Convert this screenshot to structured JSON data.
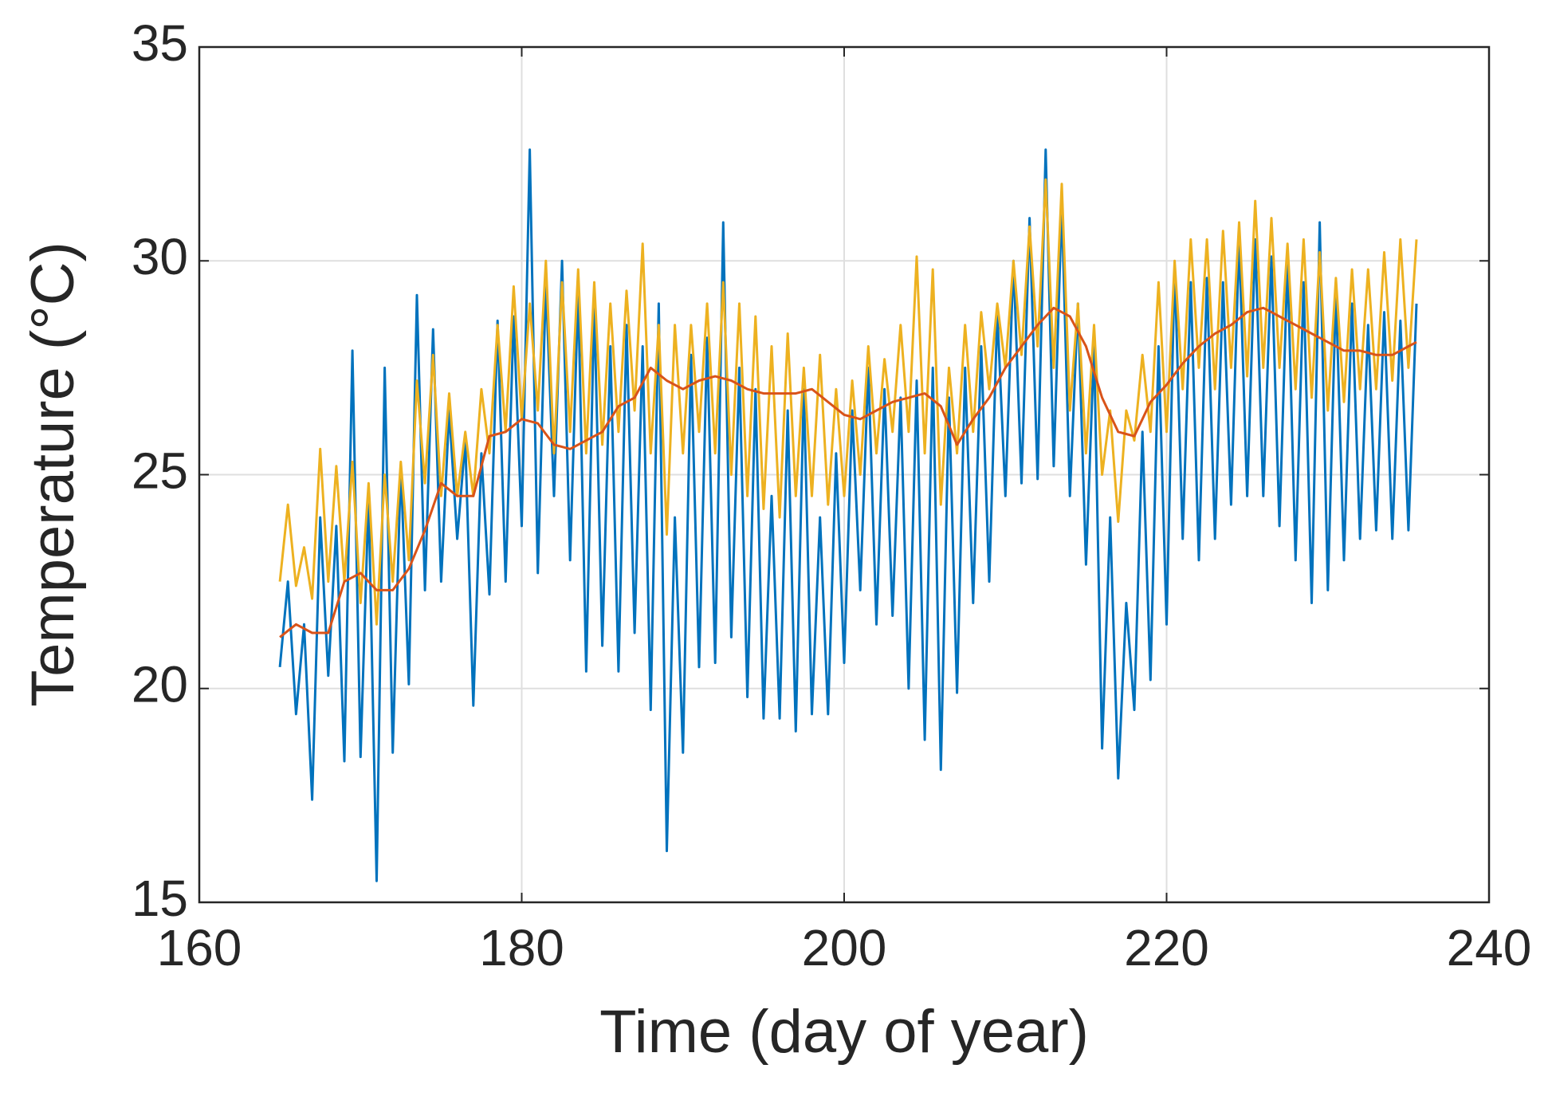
{
  "chart_data": {
    "type": "line",
    "xlabel": "Time (day of year)",
    "ylabel": "Temperature (°C)",
    "xlim": [
      160,
      240
    ],
    "xticks": [
      160,
      180,
      200,
      220,
      240
    ],
    "ylim": [
      15,
      35
    ],
    "yticks": [
      15,
      20,
      25,
      30,
      35
    ],
    "grid": true,
    "x": [
      165,
      165.5,
      166,
      166.5,
      167,
      167.5,
      168,
      168.5,
      169,
      169.5,
      170,
      170.5,
      171,
      171.5,
      172,
      172.5,
      173,
      173.5,
      174,
      174.5,
      175,
      175.5,
      176,
      176.5,
      177,
      177.5,
      178,
      178.5,
      179,
      179.5,
      180,
      180.5,
      181,
      181.5,
      182,
      182.5,
      183,
      183.5,
      184,
      184.5,
      185,
      185.5,
      186,
      186.5,
      187,
      187.5,
      188,
      188.5,
      189,
      189.5,
      190,
      190.5,
      191,
      191.5,
      192,
      192.5,
      193,
      193.5,
      194,
      194.5,
      195,
      195.5,
      196,
      196.5,
      197,
      197.5,
      198,
      198.5,
      199,
      199.5,
      200,
      200.5,
      201,
      201.5,
      202,
      202.5,
      203,
      203.5,
      204,
      204.5,
      205,
      205.5,
      206,
      206.5,
      207,
      207.5,
      208,
      208.5,
      209,
      209.5,
      210,
      210.5,
      211,
      211.5,
      212,
      212.5,
      213,
      213.5,
      214,
      214.5,
      215,
      215.5,
      216,
      216.5,
      217,
      217.5,
      218,
      218.5,
      219,
      219.5,
      220,
      220.5,
      221,
      221.5,
      222,
      222.5,
      223,
      223.5,
      224,
      224.5,
      225,
      225.5,
      226,
      226.5,
      227,
      227.5,
      228,
      228.5,
      229,
      229.5,
      230,
      230.5,
      231,
      231.5,
      232,
      232.5,
      233,
      233.5,
      234,
      234.5,
      235,
      235.5
    ],
    "series": [
      {
        "color": "#0072BD",
        "values": [
          20.5,
          22.5,
          19.4,
          21.5,
          17.4,
          24.0,
          20.3,
          23.8,
          18.3,
          27.9,
          18.4,
          24.5,
          15.5,
          27.5,
          18.5,
          25.2,
          20.1,
          29.2,
          22.3,
          28.4,
          22.5,
          26.5,
          23.5,
          25.8,
          19.6,
          25.5,
          22.2,
          28.6,
          22.5,
          28.7,
          23.8,
          32.6,
          22.7,
          29.5,
          24.5,
          30.0,
          23.0,
          29.3,
          20.4,
          29.0,
          21.0,
          28.0,
          20.4,
          28.5,
          21.3,
          28.0,
          19.5,
          29.0,
          16.2,
          24.0,
          18.5,
          27.8,
          20.5,
          28.2,
          20.6,
          30.9,
          21.2,
          27.5,
          19.8,
          27.0,
          19.3,
          24.5,
          19.3,
          26.5,
          19.0,
          27.0,
          19.4,
          24.0,
          19.4,
          25.5,
          20.6,
          26.5,
          22.3,
          27.5,
          21.5,
          27.0,
          21.7,
          26.8,
          20.0,
          27.2,
          18.8,
          27.5,
          18.1,
          26.8,
          19.9,
          27.5,
          22.0,
          28.0,
          22.5,
          28.8,
          24.5,
          30.0,
          24.8,
          31.0,
          24.9,
          32.6,
          25.2,
          31.3,
          24.5,
          29.0,
          22.9,
          28.0,
          18.6,
          24.0,
          17.9,
          22.0,
          19.5,
          26.0,
          20.2,
          28.0,
          21.5,
          29.9,
          23.5,
          29.5,
          23.0,
          29.6,
          23.5,
          29.5,
          24.3,
          30.5,
          24.5,
          30.5,
          24.5,
          30.1,
          23.8,
          30.0,
          23.0,
          29.5,
          22.0,
          30.9,
          22.3,
          29.3,
          23.0,
          29.0,
          23.5,
          28.5,
          23.7,
          28.8,
          23.5,
          28.6,
          23.7,
          29.0
        ]
      },
      {
        "color": "#EDB120",
        "values": [
          22.5,
          24.3,
          22.4,
          23.3,
          22.1,
          25.6,
          22.5,
          25.2,
          22.5,
          25.3,
          22.0,
          24.8,
          21.5,
          25.0,
          22.5,
          25.3,
          23.0,
          27.2,
          24.8,
          27.8,
          24.5,
          26.9,
          24.5,
          26.0,
          24.5,
          27.0,
          25.5,
          28.5,
          26.0,
          29.4,
          26.3,
          29.0,
          26.5,
          30.0,
          25.5,
          29.5,
          26.0,
          29.8,
          25.5,
          29.5,
          25.7,
          29.0,
          26.0,
          29.3,
          26.5,
          30.4,
          25.5,
          28.5,
          23.6,
          28.5,
          25.5,
          28.5,
          26.0,
          29.0,
          25.5,
          29.5,
          25.0,
          29.0,
          24.5,
          28.7,
          24.2,
          28.0,
          24.0,
          28.3,
          24.5,
          27.5,
          24.5,
          27.8,
          24.3,
          27.0,
          24.5,
          27.2,
          25.0,
          28.0,
          25.5,
          27.7,
          26.0,
          28.5,
          26.0,
          30.1,
          25.5,
          29.8,
          24.3,
          27.5,
          25.5,
          28.5,
          26.0,
          28.8,
          27.0,
          29.0,
          27.5,
          30.0,
          27.8,
          30.8,
          28.0,
          31.9,
          27.5,
          31.8,
          26.5,
          29.0,
          25.5,
          28.5,
          25.0,
          26.5,
          23.9,
          26.5,
          25.8,
          27.8,
          26.0,
          29.5,
          26.0,
          30.0,
          27.0,
          30.5,
          27.5,
          30.5,
          27.0,
          30.7,
          27.5,
          30.9,
          27.3,
          31.4,
          27.5,
          31.0,
          27.5,
          30.4,
          27.0,
          30.5,
          26.8,
          30.2,
          26.5,
          29.6,
          26.7,
          29.8,
          27.0,
          29.8,
          27.0,
          30.2,
          27.2,
          30.5,
          27.5,
          30.5
        ]
      },
      {
        "color": "#D95319",
        "values": [
          21.2,
          21.35,
          21.5,
          21.4,
          21.3,
          21.3,
          21.3,
          21.9,
          22.5,
          22.6,
          22.7,
          22.5,
          22.3,
          22.3,
          22.3,
          22.55,
          22.8,
          23.25,
          23.7,
          24.25,
          24.8,
          24.65,
          24.5,
          24.5,
          24.5,
          25.2,
          25.9,
          25.95,
          26.0,
          26.15,
          26.3,
          26.25,
          26.2,
          25.95,
          25.7,
          25.65,
          25.6,
          25.7,
          25.8,
          25.9,
          26.0,
          26.3,
          26.6,
          26.7,
          26.8,
          27.15,
          27.5,
          27.35,
          27.2,
          27.1,
          27.0,
          27.1,
          27.2,
          27.25,
          27.3,
          27.25,
          27.2,
          27.1,
          27.0,
          26.95,
          26.9,
          26.9,
          26.9,
          26.9,
          26.9,
          26.95,
          27.0,
          26.85,
          26.7,
          26.55,
          26.4,
          26.35,
          26.3,
          26.4,
          26.5,
          26.6,
          26.7,
          26.75,
          26.8,
          26.85,
          26.9,
          26.75,
          26.6,
          26.15,
          25.7,
          26.0,
          26.3,
          26.55,
          26.8,
          27.15,
          27.5,
          27.75,
          28.0,
          28.25,
          28.5,
          28.7,
          28.9,
          28.8,
          28.7,
          28.35,
          28.0,
          27.4,
          26.8,
          26.4,
          26.0,
          25.95,
          25.9,
          26.3,
          26.7,
          26.9,
          27.1,
          27.35,
          27.6,
          27.8,
          28.0,
          28.15,
          28.3,
          28.4,
          28.5,
          28.65,
          28.8,
          28.85,
          28.9,
          28.8,
          28.7,
          28.6,
          28.5,
          28.4,
          28.3,
          28.2,
          28.1,
          28.0,
          27.9,
          27.9,
          27.9,
          27.85,
          27.8,
          27.8,
          27.8,
          27.9,
          28.0,
          28.1
        ]
      }
    ]
  }
}
